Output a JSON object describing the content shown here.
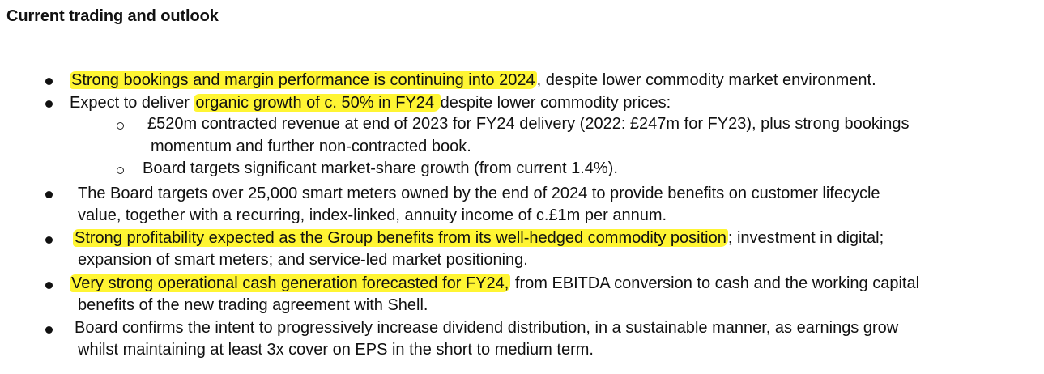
{
  "heading": "Current trading and outlook",
  "highlight_color": "#fff533",
  "bullets": [
    {
      "highlight": "Strong bookings and margin performance is continuing into 2024",
      "text": ", despite lower commodity market environment."
    },
    {
      "pre": "Expect to deliver ",
      "highlight": "organic growth of c. 50% in FY24 ",
      "text": "despite lower commodity prices:",
      "sub_items": [
        {
          "line1": "£520m contracted revenue at end of 2023 for FY24 delivery (2022: £247m for FY23), plus strong bookings",
          "line2": "momentum and further non-contracted book."
        },
        {
          "line1": "Board targets significant market-share growth (from current 1.4%)."
        }
      ]
    },
    {
      "line1": "The Board targets over 25,000 smart meters owned by the end of 2024 to provide benefits on customer lifecycle",
      "line2": "value, together with a recurring, index-linked, annuity income of c.£1m per annum."
    },
    {
      "highlight": "Strong profitability expected as the Group benefits from its well-hedged commodity position",
      "text": "; investment in digital;",
      "line2": "expansion of smart meters; and service-led market positioning."
    },
    {
      "highlight": "Very strong operational cash generation forecasted for FY24,",
      "text": " from EBITDA conversion to cash and the working capital",
      "line2": "benefits of the new trading agreement with Shell."
    },
    {
      "line1": "Board confirms the intent to progressively increase dividend distribution, in a sustainable manner, as earnings grow",
      "line2": "whilst maintaining at least 3x cover on EPS in the short to medium term."
    }
  ]
}
